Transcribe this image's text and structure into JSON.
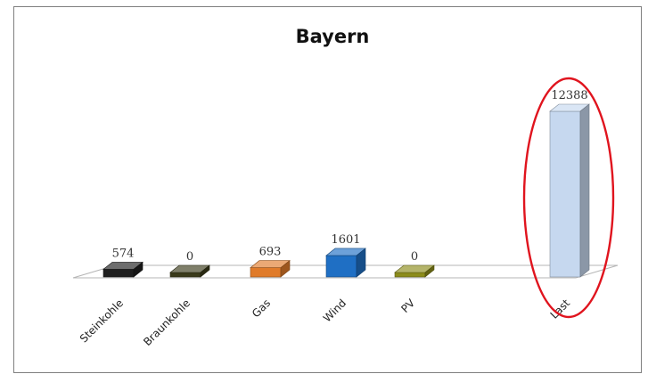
{
  "chart_data": {
    "type": "bar",
    "title": "Bayern",
    "xlabel": "",
    "ylabel": "",
    "categories": [
      "Steinkohle",
      "Braunkohle",
      "Gas",
      "Wind",
      "PV",
      "Last"
    ],
    "values": [
      574,
      0,
      693,
      1601,
      0,
      12388
    ],
    "value_labels": [
      "574",
      "0",
      "693",
      "1601",
      "0",
      "12388"
    ],
    "bar_colors": [
      "#1f1f1f",
      "#3a3a1a",
      "#e07b2a",
      "#1f6fc4",
      "#8c8c1a",
      "#c6d8ef"
    ],
    "highlight": {
      "category": "Last",
      "shape": "ellipse",
      "color": "#e0141e"
    },
    "style": "3d",
    "gridlines": false,
    "legend": "none"
  }
}
